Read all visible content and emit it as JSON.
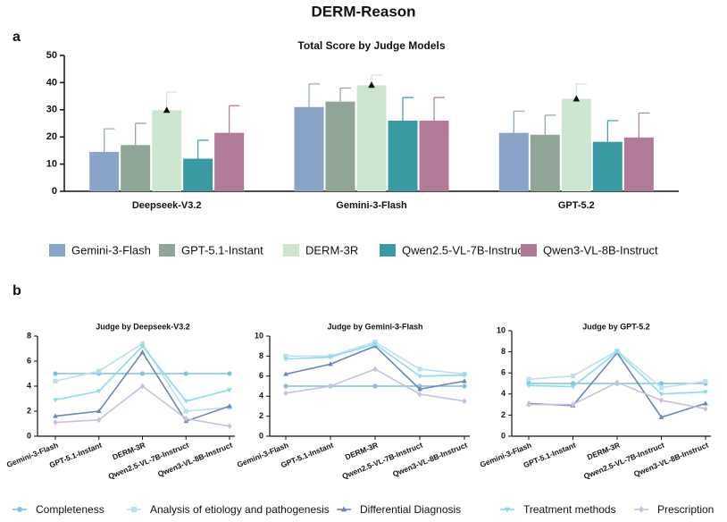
{
  "title": "DERM-Reason",
  "panel_labels": [
    "a",
    "b"
  ],
  "chart_data": [
    {
      "type": "bar",
      "title": "Total Score by Judge Models",
      "categories": [
        "Deepseek-V3.2",
        "Gemini-3-Flash",
        "GPT-5.2"
      ],
      "series": [
        {
          "name": "Gemini-3-Flash",
          "color": "#8aa4c8",
          "values": [
            14.5,
            31,
            21.5
          ],
          "errors": [
            8.5,
            8.5,
            8
          ]
        },
        {
          "name": "GPT-5.1-Instant",
          "color": "#8fa596",
          "values": [
            17,
            33,
            20.8
          ],
          "errors": [
            8,
            5,
            7.2
          ]
        },
        {
          "name": "DERM-3R",
          "color": "#cde6cf",
          "values": [
            29.8,
            39,
            34
          ],
          "errors": [
            6.7,
            3.8,
            5.5
          ],
          "marker": "triangle"
        },
        {
          "name": "Qwen2.5-VL-7B-Instruct",
          "color": "#3a9aa3",
          "values": [
            12,
            26,
            18.2
          ],
          "errors": [
            6.8,
            8.5,
            7.8
          ]
        },
        {
          "name": "Qwen3-VL-8B-Instruct",
          "color": "#b07a98",
          "values": [
            21.5,
            26,
            19.8
          ],
          "errors": [
            10,
            8.5,
            9
          ]
        }
      ],
      "ylim": [
        0,
        50
      ],
      "yticks": [
        0,
        10,
        20,
        30,
        40,
        50
      ]
    },
    {
      "type": "line",
      "categories": [
        "Gemini-3-Flash",
        "GPT-5.1-Instant",
        "DERM-3R",
        "Qwen2.5-VL-7B-Instruct",
        "Qwen3-VL-8B-Instruct"
      ],
      "series": [
        {
          "name": "Completeness",
          "color": "#7fc3df",
          "marker": "circle"
        },
        {
          "name": "Analysis of etiology and pathogenesis",
          "color": "#b8e0ef",
          "marker": "square"
        },
        {
          "name": "Differential Diagnosis",
          "color": "#6b86b8",
          "marker": "triangle"
        },
        {
          "name": "Treatment methods",
          "color": "#8cdcec",
          "marker": "triangle-down"
        },
        {
          "name": "Prescription",
          "color": "#c9bfde",
          "marker": "diamond"
        }
      ],
      "panels": [
        {
          "title": "Judge by Deepseek-V3.2",
          "ylim": [
            0,
            8
          ],
          "yticks": [
            0,
            2,
            4,
            6,
            8
          ],
          "values": [
            [
              5,
              5,
              5,
              5,
              5
            ],
            [
              4.4,
              5.2,
              7.4,
              2.0,
              2.3
            ],
            [
              1.6,
              2.0,
              6.7,
              1.2,
              2.4
            ],
            [
              2.9,
              3.6,
              7.2,
              2.8,
              3.7
            ],
            [
              1.1,
              1.3,
              4.0,
              1.4,
              0.8
            ]
          ]
        },
        {
          "title": "Judge by Gemini-3-Flash",
          "ylim": [
            0,
            10
          ],
          "yticks": [
            0,
            2,
            4,
            6,
            8,
            10
          ],
          "values": [
            [
              5,
              5,
              5,
              5,
              5
            ],
            [
              8.0,
              8.0,
              9.4,
              6.7,
              6.2
            ],
            [
              6.2,
              7.2,
              9.0,
              4.7,
              5.5
            ],
            [
              7.7,
              7.9,
              9.2,
              6.0,
              6.1
            ],
            [
              4.3,
              5.0,
              6.7,
              4.2,
              3.5
            ]
          ]
        },
        {
          "title": "Judge by GPT-5.2",
          "ylim": [
            0,
            10
          ],
          "yticks": [
            0,
            2,
            4,
            6,
            8,
            10
          ],
          "values": [
            [
              5,
              5,
              5,
              5,
              5
            ],
            [
              5.4,
              5.7,
              8.1,
              4.6,
              5.2
            ],
            [
              3.1,
              2.9,
              7.9,
              1.8,
              3.1
            ],
            [
              4.8,
              4.7,
              8.0,
              4.0,
              4.2
            ],
            [
              3.0,
              3.0,
              5.1,
              3.4,
              2.6
            ]
          ]
        }
      ]
    }
  ]
}
